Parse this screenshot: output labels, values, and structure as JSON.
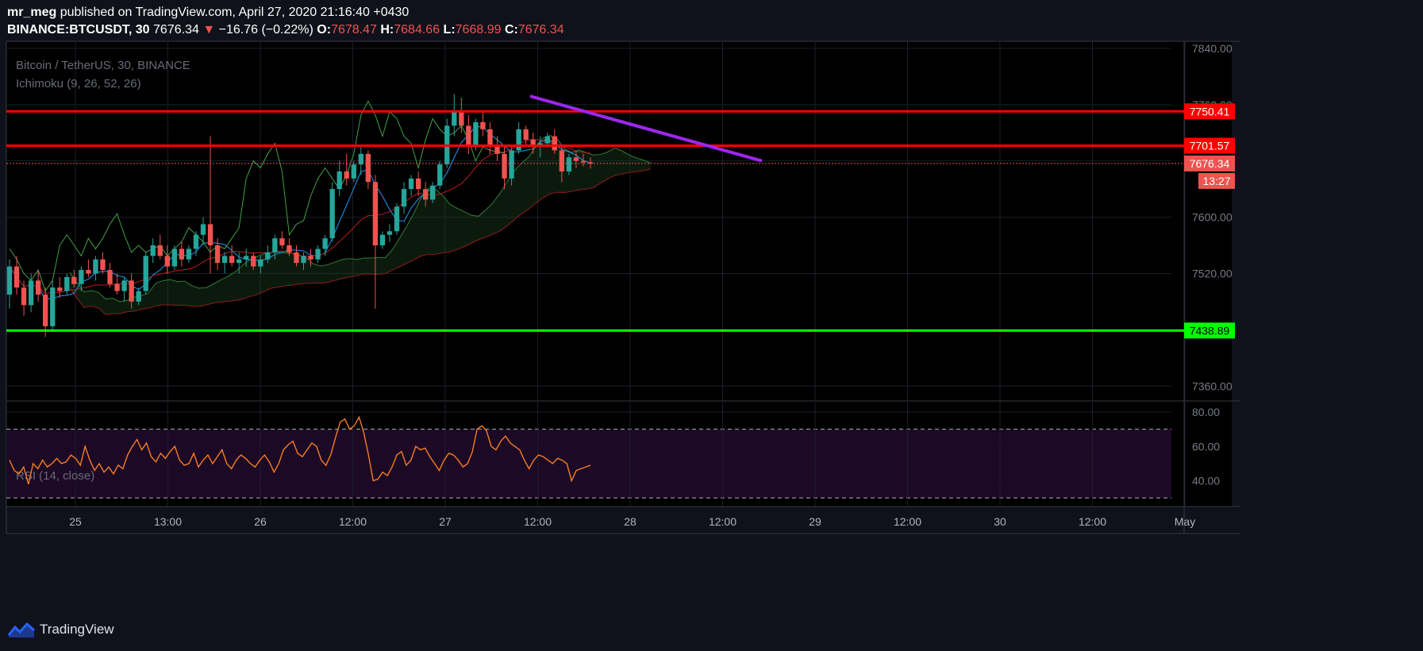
{
  "header": {
    "author": "mr_meg",
    "published": "published on TradingView.com, April 27, 2020 21:16:40 +0430",
    "symbol": "BINANCE:BTCUSDT, 30",
    "last": "7676.34",
    "arrow": "▼",
    "change": "−16.76 (−0.22%)",
    "o_label": "O:",
    "o_value": "7678.47",
    "h_label": "H:",
    "h_value": "7684.66",
    "l_label": "L:",
    "l_value": "7668.99",
    "c_label": "C:",
    "c_value": "7676.34"
  },
  "footer": {
    "brand": "TradingView"
  },
  "colors": {
    "background": "#000000",
    "page": "#0f111b",
    "grid": "#1c1e28",
    "up": "#26a69a",
    "down": "#ef5350",
    "resistance": "#ff0000",
    "support": "#00ff00",
    "trendline": "#9c27f0",
    "rsi": "#f57c23",
    "tenkan": "#2196f3",
    "kijun": "#b71c1c",
    "chikou": "#43a047"
  },
  "chart_data": [
    {
      "type": "candlestick",
      "title": "Bitcoin / TetherUS, 30, BINANCE",
      "subtitle": "Ichimoku (9, 26, 52, 26)",
      "x_ticks": [
        "25",
        "13:00",
        "26",
        "12:00",
        "27",
        "12:00",
        "28",
        "12:00",
        "29",
        "12:00",
        "30",
        "12:00",
        "May"
      ],
      "y_ticks": [
        7840.0,
        7760.0,
        7680.0,
        7600.0,
        7520.0,
        7440.0,
        7360.0
      ],
      "ylim": [
        7340,
        7850
      ],
      "candles_approx": [
        [
          7490,
          7540,
          7470,
          7530
        ],
        [
          7530,
          7545,
          7490,
          7500
        ],
        [
          7500,
          7510,
          7460,
          7475
        ],
        [
          7475,
          7520,
          7465,
          7510
        ],
        [
          7510,
          7525,
          7480,
          7490
        ],
        [
          7490,
          7500,
          7430,
          7445
        ],
        [
          7445,
          7510,
          7440,
          7500
        ],
        [
          7500,
          7515,
          7485,
          7495
        ],
        [
          7495,
          7520,
          7490,
          7515
        ],
        [
          7515,
          7525,
          7500,
          7505
        ],
        [
          7505,
          7530,
          7495,
          7525
        ],
        [
          7525,
          7540,
          7515,
          7520
        ],
        [
          7520,
          7545,
          7510,
          7540
        ],
        [
          7540,
          7550,
          7520,
          7525
        ],
        [
          7525,
          7535,
          7500,
          7505
        ],
        [
          7505,
          7520,
          7490,
          7495
        ],
        [
          7495,
          7515,
          7480,
          7510
        ],
        [
          7510,
          7520,
          7470,
          7480
        ],
        [
          7480,
          7500,
          7475,
          7495
        ],
        [
          7495,
          7550,
          7490,
          7545
        ],
        [
          7545,
          7570,
          7535,
          7560
        ],
        [
          7560,
          7575,
          7540,
          7545
        ],
        [
          7545,
          7560,
          7520,
          7530
        ],
        [
          7530,
          7560,
          7525,
          7555
        ],
        [
          7555,
          7565,
          7530,
          7540
        ],
        [
          7540,
          7560,
          7535,
          7555
        ],
        [
          7555,
          7580,
          7545,
          7575
        ],
        [
          7575,
          7600,
          7560,
          7590
        ],
        [
          7590,
          7715,
          7520,
          7560
        ],
        [
          7560,
          7570,
          7525,
          7535
        ],
        [
          7535,
          7550,
          7520,
          7545
        ],
        [
          7545,
          7560,
          7530,
          7535
        ],
        [
          7535,
          7550,
          7520,
          7540
        ],
        [
          7540,
          7555,
          7530,
          7545
        ],
        [
          7545,
          7550,
          7525,
          7530
        ],
        [
          7530,
          7545,
          7520,
          7540
        ],
        [
          7540,
          7560,
          7535,
          7550
        ],
        [
          7550,
          7575,
          7540,
          7570
        ],
        [
          7570,
          7580,
          7555,
          7560
        ],
        [
          7560,
          7570,
          7545,
          7550
        ],
        [
          7550,
          7560,
          7530,
          7535
        ],
        [
          7535,
          7550,
          7525,
          7545
        ],
        [
          7545,
          7555,
          7530,
          7540
        ],
        [
          7540,
          7560,
          7535,
          7555
        ],
        [
          7555,
          7575,
          7545,
          7570
        ],
        [
          7570,
          7650,
          7565,
          7640
        ],
        [
          7640,
          7680,
          7630,
          7665
        ],
        [
          7665,
          7690,
          7645,
          7655
        ],
        [
          7655,
          7680,
          7650,
          7675
        ],
        [
          7675,
          7700,
          7660,
          7690
        ],
        [
          7690,
          7695,
          7640,
          7650
        ],
        [
          7650,
          7660,
          7470,
          7560
        ],
        [
          7560,
          7580,
          7555,
          7575
        ],
        [
          7575,
          7590,
          7565,
          7580
        ],
        [
          7580,
          7620,
          7575,
          7615
        ],
        [
          7615,
          7650,
          7605,
          7640
        ],
        [
          7640,
          7660,
          7630,
          7655
        ],
        [
          7655,
          7665,
          7630,
          7640
        ],
        [
          7640,
          7650,
          7615,
          7625
        ],
        [
          7625,
          7650,
          7620,
          7645
        ],
        [
          7645,
          7680,
          7640,
          7675
        ],
        [
          7675,
          7740,
          7670,
          7730
        ],
        [
          7730,
          7775,
          7715,
          7750
        ],
        [
          7750,
          7770,
          7720,
          7730
        ],
        [
          7730,
          7745,
          7690,
          7700
        ],
        [
          7700,
          7740,
          7695,
          7735
        ],
        [
          7735,
          7750,
          7715,
          7725
        ],
        [
          7725,
          7735,
          7690,
          7700
        ],
        [
          7700,
          7715,
          7680,
          7690
        ],
        [
          7690,
          7700,
          7640,
          7655
        ],
        [
          7655,
          7700,
          7645,
          7695
        ],
        [
          7695,
          7735,
          7690,
          7725
        ],
        [
          7725,
          7730,
          7700,
          7710
        ],
        [
          7710,
          7720,
          7690,
          7700
        ],
        [
          7700,
          7715,
          7685,
          7705
        ],
        [
          7705,
          7720,
          7700,
          7715
        ],
        [
          7715,
          7725,
          7690,
          7695
        ],
        [
          7695,
          7700,
          7650,
          7665
        ],
        [
          7665,
          7690,
          7660,
          7685
        ],
        [
          7685,
          7695,
          7670,
          7680
        ],
        [
          7680,
          7690,
          7672,
          7678
        ],
        [
          7678,
          7685,
          7669,
          7676
        ]
      ],
      "horizontal_levels": [
        {
          "label": "7750.41",
          "value": 7750.41,
          "color": "#ff0000"
        },
        {
          "label": "7701.57",
          "value": 7701.57,
          "color": "#ff0000"
        },
        {
          "label": "7438.89",
          "value": 7438.89,
          "color": "#00ff00"
        }
      ],
      "last_price": {
        "label": "7676.34",
        "value": 7676.34
      },
      "countdown": "13:27"
    },
    {
      "type": "line",
      "title": "RSI (14, close)",
      "y_ticks": [
        80.0,
        60.0,
        40.0
      ],
      "ylim": [
        25,
        86
      ],
      "bands": [
        70,
        30
      ],
      "values": [
        52,
        46,
        44,
        48,
        38,
        50,
        47,
        52,
        48,
        50,
        53,
        50,
        51,
        55,
        53,
        49,
        60,
        52,
        46,
        50,
        45,
        48,
        44,
        49,
        47,
        55,
        60,
        64,
        58,
        62,
        54,
        51,
        56,
        53,
        57,
        60,
        52,
        49,
        50,
        56,
        48,
        52,
        55,
        50,
        54,
        58,
        50,
        47,
        52,
        55,
        53,
        50,
        48,
        52,
        55,
        51,
        45,
        50,
        58,
        61,
        63,
        56,
        54,
        58,
        62,
        60,
        52,
        49,
        55,
        65,
        74,
        76,
        70,
        72,
        77,
        68,
        55,
        40,
        41,
        45,
        43,
        48,
        55,
        57,
        49,
        52,
        60,
        58,
        59,
        54,
        50,
        46,
        52,
        56,
        55,
        52,
        48,
        50,
        57,
        70,
        72,
        69,
        60,
        58,
        63,
        66,
        62,
        60,
        58,
        52,
        47,
        52,
        55,
        54,
        52,
        50,
        53,
        52,
        50,
        40,
        46,
        47,
        48,
        49
      ],
      "series_color": "#f57c23"
    }
  ]
}
